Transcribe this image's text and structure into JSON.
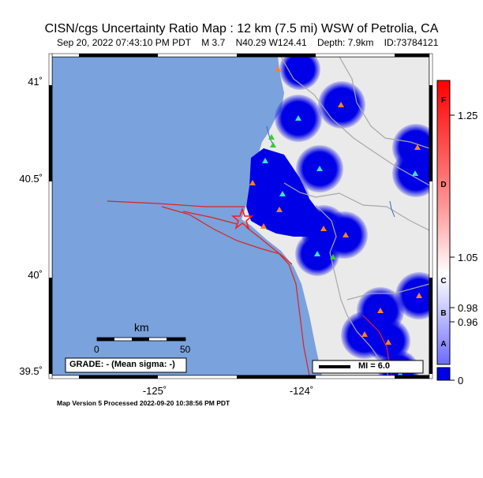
{
  "header": {
    "title": "CISN/cgs Uncertainty Ratio Map : 12 km (7.5 mi) WSW of Petrolia, CA",
    "subtitle": "Sep 20, 2022 07:43:10 PM PDT    M 3.7    N40.29 W124.41    Depth: 7.9km    ID:73784121"
  },
  "map": {
    "lat_labels": [
      "41˚",
      "40.5˚",
      "40˚",
      "39.5˚"
    ],
    "lon_labels": [
      "-125˚",
      "-124˚"
    ],
    "scale_bar": {
      "unit": "km",
      "start": "0",
      "end": "50"
    },
    "grade_text": "GRADE: - (Mean sigma: -)",
    "mi_legend": "MI = 6.0",
    "colors": {
      "ocean": "#7aa2dc",
      "land": "#eaeaea",
      "uncertainty_blob": "#0000e6",
      "fault": "#dd2222",
      "epicenter": "#ff1a1a",
      "roads": "#a8a8a8",
      "rivers": "#3366cc"
    },
    "station_markers": [
      {
        "type": "triangle",
        "color": "#ff7f2a"
      },
      {
        "type": "triangle",
        "color": "#40e0d0"
      },
      {
        "type": "triangle",
        "color": "#32cd32"
      }
    ]
  },
  "colorbar": {
    "values": [
      "1.25",
      "1.05",
      "0.98",
      "0.96",
      "0"
    ],
    "letters": [
      "F",
      "D",
      "C",
      "B",
      "A"
    ]
  },
  "footer": {
    "text": "Map Version 5 Processed 2022-09-20 10:38:56 PM PDT"
  }
}
